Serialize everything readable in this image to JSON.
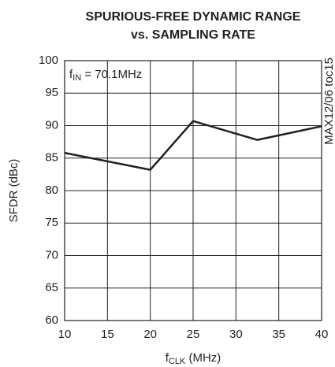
{
  "chart_data": {
    "type": "line",
    "title": [
      "SPURIOUS-FREE DYNAMIC RANGE",
      "vs. SAMPLING RATE"
    ],
    "annotation": {
      "base": "f",
      "sub": "IN",
      "rest": " = 70.1MHz"
    },
    "side_note": "MAX12/06 toc15",
    "x_label": {
      "base": "f",
      "sub": "CLK",
      "rest": " (MHz)"
    },
    "y_label": "SFDR (dBc)",
    "x": [
      10,
      20,
      25,
      32.5,
      40
    ],
    "series": [
      {
        "color": "#231f20",
        "values": [
          85.8,
          83.2,
          90.7,
          87.8,
          89.9
        ]
      }
    ],
    "xlim": [
      10,
      40
    ],
    "xticks": [
      10,
      15,
      20,
      25,
      30,
      35,
      40
    ],
    "ylim": [
      60,
      100
    ],
    "yticks": [
      60,
      65,
      70,
      75,
      80,
      85,
      90,
      95,
      100
    ],
    "grid": true
  }
}
